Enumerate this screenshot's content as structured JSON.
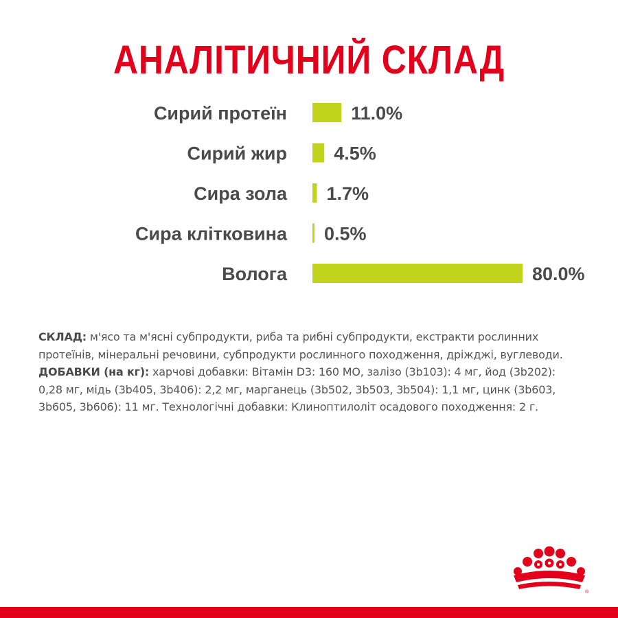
{
  "title": "АНАЛІТИЧНИЙ СКЛАД",
  "chart_data": {
    "type": "bar",
    "orientation": "horizontal",
    "categories": [
      "Сирий протеїн",
      "Сирий жир",
      "Сира зола",
      "Сира клітковина",
      "Волога"
    ],
    "values": [
      11.0,
      4.5,
      1.7,
      0.5,
      80.0
    ],
    "value_labels": [
      "11.0%",
      "4.5%",
      "1.7%",
      "0.5%",
      "80.0%"
    ],
    "xlim": [
      0,
      80
    ],
    "grid": false,
    "bar_color": "#c2d31c",
    "label_color": "#4a4a4a"
  },
  "composition": {
    "label": "СКЛАД:",
    "text": " м'ясо та м'ясні субпродукти, риба та рибні субпродукти, екстракти рослинних протеїнів, мінеральні речовини, субпродукти рослинного походження, дріжджі, вуглеводи."
  },
  "additives": {
    "label": "ДОБАВКИ (на кг):",
    "text": " харчові добавки: Вітамін D3: 160 МО, залізо (3b103): 4 мг, йод (3b202): 0,28 мг, мідь (3b405, 3b406): 2,2 мг, марганець (3b502, 3b503, 3b504): 1,1 мг, цинк (3b603, 3b605, 3b606): 11 мг. Технологічні добавки: Клиноптилоліт осадового походження: 2 г."
  },
  "colors": {
    "brand_red": "#e2001a",
    "bar_green": "#c2d31c",
    "text_gray": "#4a4a4a"
  },
  "logo": {
    "icon": "crown-icon"
  }
}
